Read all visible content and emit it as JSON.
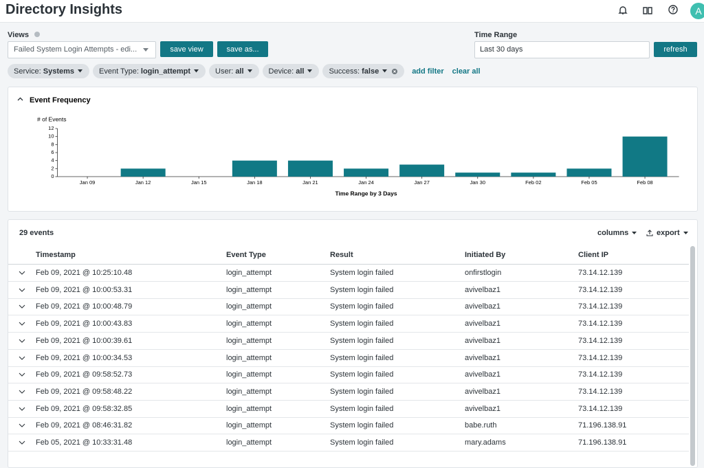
{
  "header": {
    "title": "Directory Insights",
    "avatar": "A"
  },
  "views": {
    "label": "Views",
    "selected": "Failed System Login Attempts - edi...",
    "save_view": "save view",
    "save_as": "save as..."
  },
  "time_range": {
    "label": "Time Range",
    "value": "Last 30 days",
    "refresh": "refresh"
  },
  "filters": [
    {
      "key": "Service:",
      "value": "Systems"
    },
    {
      "key": "Event Type:",
      "value": "login_attempt"
    },
    {
      "key": "User:",
      "value": "all"
    },
    {
      "key": "Device:",
      "value": "all"
    },
    {
      "key": "Success:",
      "value": "false"
    }
  ],
  "filter_actions": {
    "add": "add filter",
    "clear": "clear all"
  },
  "chart_data": {
    "type": "bar",
    "title": "Event Frequency",
    "y_label": "# of Events",
    "x_label": "Time Range by 3 Days",
    "categories": [
      "Jan 09",
      "Jan 12",
      "Jan 15",
      "Jan 18",
      "Jan 21",
      "Jan 24",
      "Jan 27",
      "Jan 30",
      "Feb 02",
      "Feb 05",
      "Feb 08"
    ],
    "values": [
      0,
      2,
      0,
      4,
      4,
      2,
      3,
      1,
      1,
      2,
      10
    ],
    "color": "#117985",
    "ylim": [
      0,
      12
    ],
    "yticks": [
      0,
      2,
      4,
      6,
      8,
      10,
      12
    ]
  },
  "events": {
    "count": "29 events",
    "columns_button": "columns",
    "export_button": "export",
    "headers": [
      "Timestamp",
      "Event Type",
      "Result",
      "Initiated By",
      "Client IP"
    ],
    "rows": [
      [
        "Feb 09, 2021 @ 10:25:10.48",
        "login_attempt",
        "System login failed",
        "onfirstlogin",
        "73.14.12.139"
      ],
      [
        "Feb 09, 2021 @ 10:00:53.31",
        "login_attempt",
        "System login failed",
        "avivelbaz1",
        "73.14.12.139"
      ],
      [
        "Feb 09, 2021 @ 10:00:48.79",
        "login_attempt",
        "System login failed",
        "avivelbaz1",
        "73.14.12.139"
      ],
      [
        "Feb 09, 2021 @ 10:00:43.83",
        "login_attempt",
        "System login failed",
        "avivelbaz1",
        "73.14.12.139"
      ],
      [
        "Feb 09, 2021 @ 10:00:39.61",
        "login_attempt",
        "System login failed",
        "avivelbaz1",
        "73.14.12.139"
      ],
      [
        "Feb 09, 2021 @ 10:00:34.53",
        "login_attempt",
        "System login failed",
        "avivelbaz1",
        "73.14.12.139"
      ],
      [
        "Feb 09, 2021 @ 09:58:52.73",
        "login_attempt",
        "System login failed",
        "avivelbaz1",
        "73.14.12.139"
      ],
      [
        "Feb 09, 2021 @ 09:58:48.22",
        "login_attempt",
        "System login failed",
        "avivelbaz1",
        "73.14.12.139"
      ],
      [
        "Feb 09, 2021 @ 09:58:32.85",
        "login_attempt",
        "System login failed",
        "avivelbaz1",
        "73.14.12.139"
      ],
      [
        "Feb 09, 2021 @ 08:46:31.82",
        "login_attempt",
        "System login failed",
        "babe.ruth",
        "71.196.138.91"
      ],
      [
        "Feb 05, 2021 @ 10:33:31.48",
        "login_attempt",
        "System login failed",
        "mary.adams",
        "71.196.138.91"
      ]
    ]
  }
}
